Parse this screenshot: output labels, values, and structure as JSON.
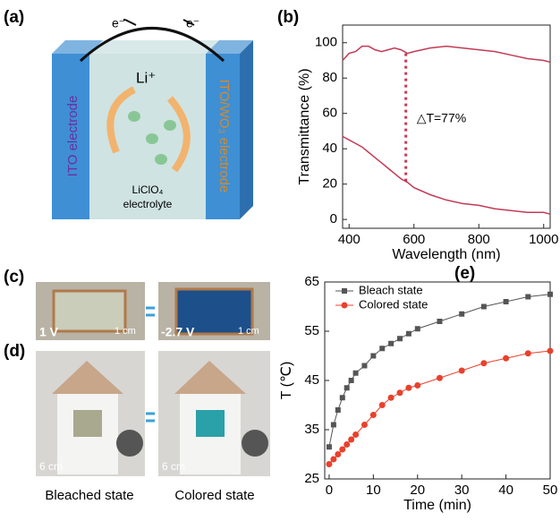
{
  "panels": {
    "a": "(a)",
    "b": "(b)",
    "c": "(c)",
    "d": "(d)",
    "e": "(e)"
  },
  "diagram": {
    "electron_left": "e⁻",
    "electron_right": "e⁻",
    "ion": "Li⁺",
    "left_electrode": "ITO electrode",
    "right_electrode": "ITO/WO₃ electrode",
    "electrolyte_1": "LiClO₄",
    "electrolyte_2": "electrolyte"
  },
  "photos": {
    "c_left_voltage": "1 V",
    "c_left_scale": "1 cm",
    "c_right_voltage": "-2.7 V",
    "c_right_scale": "1 cm",
    "d_left_scale": "6 cm",
    "d_right_scale": "6 cm",
    "caption_left": "Bleached state",
    "caption_right": "Colored state"
  },
  "chart_data": [
    {
      "type": "line",
      "xlabel": "Wavelength (nm)",
      "ylabel": "Transmittance (%)",
      "x": [
        380,
        400,
        420,
        440,
        460,
        480,
        500,
        520,
        540,
        560,
        580,
        600,
        650,
        700,
        750,
        800,
        850,
        900,
        950,
        1000,
        1020
      ],
      "series": [
        {
          "color": "#c23b55",
          "values": [
            90,
            94,
            95,
            98,
            98,
            96,
            95,
            96,
            97,
            96,
            94,
            95,
            97,
            98,
            97,
            96,
            95,
            93,
            91,
            90,
            89
          ]
        },
        {
          "color": "#c23b55",
          "values": [
            47,
            45,
            43,
            41,
            38,
            35,
            32,
            29,
            26,
            23,
            21,
            18,
            14,
            11,
            9,
            8,
            6,
            5,
            4,
            4,
            3
          ]
        }
      ],
      "annotation": {
        "text": "△T=77%",
        "x": 575,
        "y": [
          94,
          20
        ]
      },
      "xlim": [
        380,
        1020
      ],
      "xticks": [
        400,
        600,
        800,
        1000
      ],
      "ylim": [
        -5,
        110
      ],
      "yticks": [
        0,
        20,
        40,
        60,
        80,
        100
      ]
    },
    {
      "type": "line",
      "markers": true,
      "xlabel": "Time (min)",
      "ylabel": "T (℃)",
      "legend": "top-left",
      "x": [
        0,
        1,
        2,
        3,
        4,
        5,
        6,
        8,
        10,
        12,
        14,
        16,
        18,
        20,
        25,
        30,
        35,
        40,
        45,
        50
      ],
      "series": [
        {
          "name": "Bleach state",
          "color": "#555555",
          "marker": "square",
          "values": [
            31.5,
            36,
            39,
            41.5,
            43.5,
            45,
            46.5,
            48,
            50,
            51.5,
            52.5,
            53.5,
            54.5,
            55.5,
            57,
            58.5,
            60,
            61,
            62,
            62.5
          ]
        },
        {
          "name": "Colored state",
          "color": "#e8412c",
          "marker": "circle",
          "values": [
            28,
            29,
            30,
            31,
            32,
            33,
            34,
            36,
            38,
            40,
            41.5,
            42.5,
            43.5,
            44,
            45.5,
            47,
            48.5,
            49.5,
            50.5,
            51
          ]
        }
      ],
      "xlim": [
        -1,
        50
      ],
      "xticks": [
        0,
        10,
        20,
        30,
        40,
        50
      ],
      "ylim": [
        25,
        65
      ],
      "yticks": [
        25,
        35,
        45,
        55,
        65
      ]
    }
  ]
}
